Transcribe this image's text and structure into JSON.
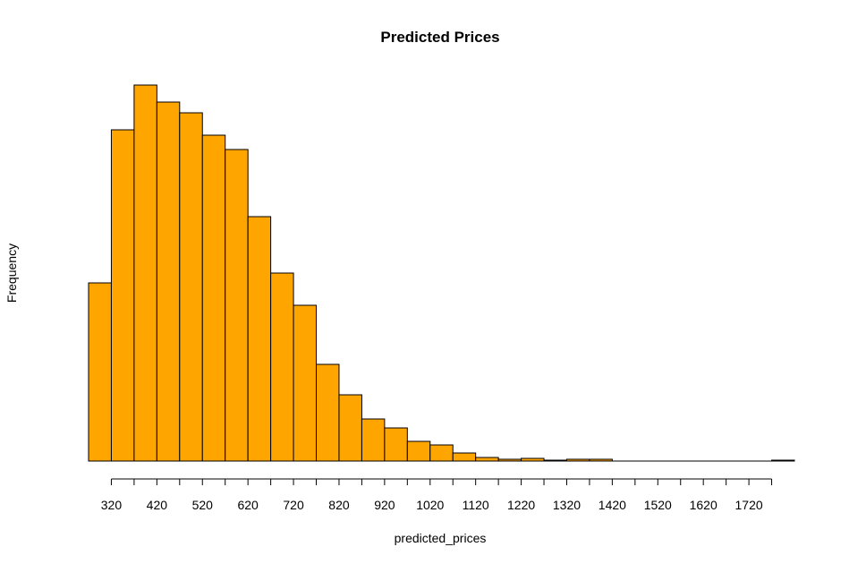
{
  "chart_data": {
    "type": "bar",
    "title": "Predicted Prices",
    "xlabel": "predicted_prices",
    "ylabel": "Frequency",
    "bin_width": 50,
    "bin_start": 270,
    "bins": [
      {
        "x0": 270,
        "x1": 320,
        "value": 199
      },
      {
        "x0": 320,
        "x1": 370,
        "value": 370
      },
      {
        "x0": 370,
        "x1": 420,
        "value": 420
      },
      {
        "x0": 420,
        "x1": 470,
        "value": 401
      },
      {
        "x0": 470,
        "x1": 520,
        "value": 389
      },
      {
        "x0": 520,
        "x1": 570,
        "value": 364
      },
      {
        "x0": 570,
        "x1": 620,
        "value": 348
      },
      {
        "x0": 620,
        "x1": 670,
        "value": 273
      },
      {
        "x0": 670,
        "x1": 720,
        "value": 210
      },
      {
        "x0": 720,
        "x1": 770,
        "value": 174
      },
      {
        "x0": 770,
        "x1": 820,
        "value": 108
      },
      {
        "x0": 820,
        "x1": 870,
        "value": 74
      },
      {
        "x0": 870,
        "x1": 920,
        "value": 47
      },
      {
        "x0": 920,
        "x1": 970,
        "value": 37
      },
      {
        "x0": 970,
        "x1": 1020,
        "value": 22
      },
      {
        "x0": 1020,
        "x1": 1070,
        "value": 18
      },
      {
        "x0": 1070,
        "x1": 1120,
        "value": 9
      },
      {
        "x0": 1120,
        "x1": 1170,
        "value": 4
      },
      {
        "x0": 1170,
        "x1": 1220,
        "value": 2
      },
      {
        "x0": 1220,
        "x1": 1270,
        "value": 3
      },
      {
        "x0": 1270,
        "x1": 1320,
        "value": 1
      },
      {
        "x0": 1320,
        "x1": 1370,
        "value": 2
      },
      {
        "x0": 1370,
        "x1": 1420,
        "value": 2
      },
      {
        "x0": 1420,
        "x1": 1470,
        "value": 0
      },
      {
        "x0": 1470,
        "x1": 1520,
        "value": 0
      },
      {
        "x0": 1520,
        "x1": 1570,
        "value": 0
      },
      {
        "x0": 1570,
        "x1": 1620,
        "value": 0
      },
      {
        "x0": 1620,
        "x1": 1670,
        "value": 0
      },
      {
        "x0": 1670,
        "x1": 1720,
        "value": 0
      },
      {
        "x0": 1720,
        "x1": 1770,
        "value": 0
      },
      {
        "x0": 1770,
        "x1": 1820,
        "value": 1
      }
    ],
    "x_ticks": [
      320,
      370,
      420,
      470,
      520,
      570,
      620,
      670,
      720,
      770,
      820,
      870,
      920,
      970,
      1020,
      1070,
      1120,
      1170,
      1220,
      1270,
      1320,
      1370,
      1420,
      1470,
      1520,
      1570,
      1620,
      1670,
      1720,
      1770
    ],
    "x_tick_labels": [
      "320",
      "420",
      "520",
      "620",
      "720",
      "820",
      "920",
      "1020",
      "1120",
      "1220",
      "1320",
      "1420",
      "1520",
      "1620",
      "1720"
    ],
    "xlim": [
      270,
      1820
    ],
    "ylim": [
      0,
      420
    ],
    "y_ticks_shown": false,
    "grid": false,
    "legend": "none",
    "colors": {
      "bar_fill": "#FFA500",
      "bar_stroke": "#000000"
    }
  }
}
